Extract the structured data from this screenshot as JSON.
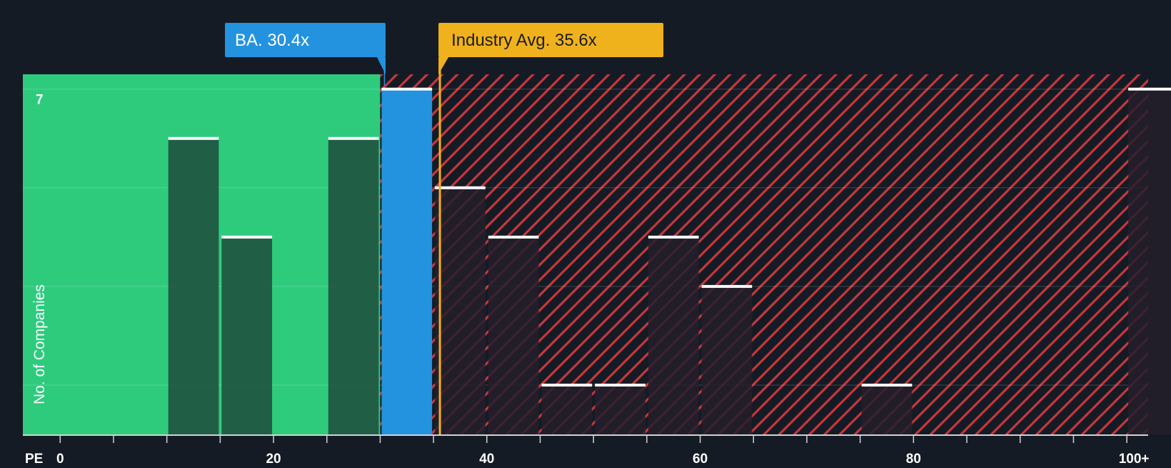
{
  "chart_data": {
    "type": "bar",
    "title": "",
    "xlabel": "PE",
    "ylabel": "No. of Companies",
    "xlim": [
      -3.5,
      102
    ],
    "ylim": [
      0,
      7.3
    ],
    "x_ticks": [
      "0",
      "20",
      "40",
      "60",
      "80",
      "100+"
    ],
    "y_ticks_shown": [
      "7"
    ],
    "bin_width": 5,
    "series": [
      {
        "name": "No. of Companies",
        "bins": [
          {
            "start": 10,
            "end": 15,
            "value": 6
          },
          {
            "start": 15,
            "end": 20,
            "value": 4
          },
          {
            "start": 25,
            "end": 30,
            "value": 6
          },
          {
            "start": 30,
            "end": 35,
            "value": 7,
            "highlight": true
          },
          {
            "start": 35,
            "end": 40,
            "value": 5
          },
          {
            "start": 40,
            "end": 45,
            "value": 4
          },
          {
            "start": 45,
            "end": 50,
            "value": 1
          },
          {
            "start": 50,
            "end": 55,
            "value": 1
          },
          {
            "start": 55,
            "end": 60,
            "value": 4
          },
          {
            "start": 60,
            "end": 65,
            "value": 3
          },
          {
            "start": 75,
            "end": 80,
            "value": 1
          },
          {
            "start": 100,
            "end": 105,
            "value": 7
          }
        ]
      }
    ],
    "company": {
      "label": "BA. 30.4x",
      "value": 30.4
    },
    "industry": {
      "label": "Industry Avg. 35.6x",
      "value": 35.6
    },
    "colors": {
      "background": "#151b24",
      "undervalued_zone": "#2ecb7d",
      "overvalued_stripe": "#c8363c",
      "company": "#2393e0",
      "industry": "#f0b21c",
      "bar_dark": "#1e4b3c",
      "bar_over": "#231f2b",
      "bar_cap": "#ffffff"
    }
  }
}
